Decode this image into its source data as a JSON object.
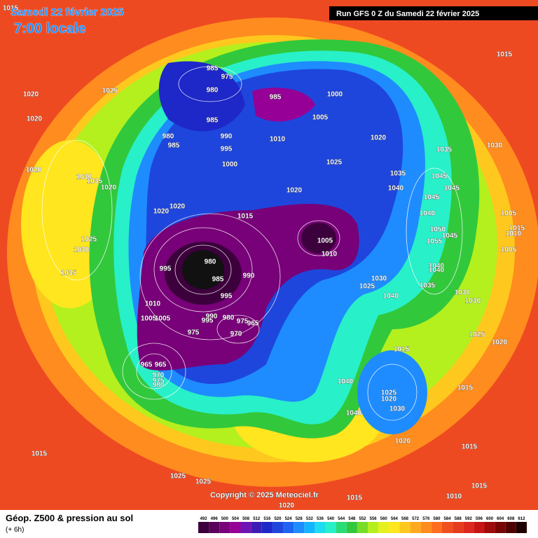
{
  "header": {
    "date": "Samedi 22 février 2025",
    "time": "7:00 locale",
    "run": "Run GFS 0 Z du Samedi 22 février 2025"
  },
  "copyright": "Copyright © 2025 Meteociel.fr",
  "footer": {
    "title": "Géop. Z500 & pression au sol",
    "subtitle": "(+ 6h)"
  },
  "legend": {
    "ticks": [
      492,
      496,
      500,
      504,
      508,
      512,
      516,
      520,
      524,
      528,
      532,
      536,
      540,
      544,
      548,
      552,
      556,
      560,
      564,
      568,
      572,
      576,
      580,
      584,
      588,
      592,
      596,
      600,
      604,
      608,
      612
    ],
    "colors": [
      "#3c003c",
      "#5a005a",
      "#780078",
      "#960096",
      "#6e14b4",
      "#3c1eb4",
      "#1e28c8",
      "#1e46dc",
      "#1e64f0",
      "#1e8cff",
      "#14b4ff",
      "#1edcf0",
      "#28f0c8",
      "#28dc78",
      "#32c83c",
      "#78dc28",
      "#b4f01e",
      "#e6f01e",
      "#ffe61e",
      "#ffc81e",
      "#ffaa1e",
      "#ff8c1e",
      "#ff6e1e",
      "#f05020",
      "#e63c1e",
      "#dc281e",
      "#c81414",
      "#a00a0a",
      "#780505",
      "#500000",
      "#1e0000"
    ]
  },
  "pressure_labels": [
    1015,
    1020,
    1025,
    1020,
    985,
    975,
    980,
    985,
    1000,
    1005,
    985,
    980,
    985,
    990,
    995,
    1010,
    1000,
    1020,
    1035,
    1030,
    1025,
    1035,
    1045,
    1040,
    1045,
    1015,
    1020,
    1030,
    1035,
    1020,
    1020,
    1045,
    1020,
    1020,
    1015,
    1040,
    1005,
    1015,
    1010,
    1050,
    1045,
    1055,
    1005,
    1025,
    1030,
    1005,
    1010,
    980,
    1040,
    1040,
    995,
    1035,
    985,
    990,
    1030,
    1025,
    1035,
    1030,
    1030,
    1040,
    995,
    1010,
    990,
    995,
    980,
    975,
    965,
    1005,
    1005,
    975,
    970,
    1025,
    1020,
    1015,
    965,
    965,
    970,
    975,
    980,
    1040,
    1025,
    1020,
    1015,
    1030,
    1040,
    1020,
    1015,
    1015,
    1025,
    1025,
    1015,
    1015,
    1010,
    1020
  ]
}
